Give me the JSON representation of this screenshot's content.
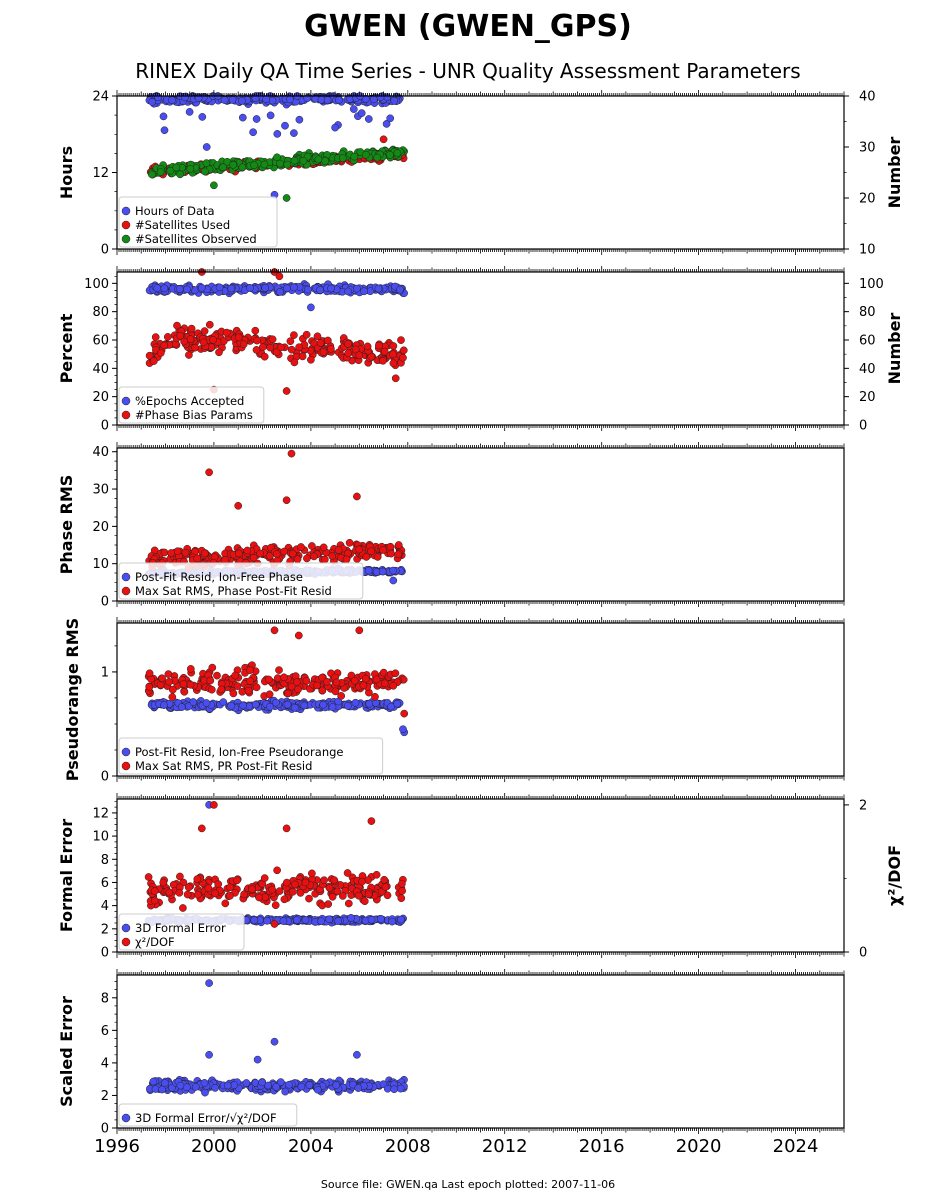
{
  "title": "GWEN (GWEN_GPS)",
  "subtitle": "RINEX Daily QA Time Series - UNR Quality Assessment Parameters",
  "footer": "Source file: GWEN.qa Last epoch plotted: 2007-11-06",
  "colors": {
    "blue": "#4a4ef0",
    "red": "#e81010",
    "green": "#138a13"
  },
  "chart_data": [
    {
      "type": "scatter",
      "ylabel": "Hours",
      "ylabel_right": "Number",
      "xlim": [
        1996,
        2026
      ],
      "xticks": [
        "1996",
        "2000",
        "2004",
        "2008",
        "2012",
        "2016",
        "2020",
        "2024"
      ],
      "ylim": [
        0,
        24
      ],
      "yticks": [
        "0",
        "12",
        "24"
      ],
      "ylim_right": [
        10,
        40
      ],
      "yticks_right": [
        "10",
        "20",
        "30",
        "40"
      ],
      "legend": [
        "Hours of Data",
        "#Satellites Used",
        "#Satellites Observed"
      ],
      "series": [
        {
          "name": "Hours of Data",
          "axis": "left",
          "color": "blue",
          "x_range": [
            1997.3,
            2007.85
          ],
          "base": 23.5,
          "spread": 0.6,
          "outlier_range": [
            17,
            23.5
          ],
          "outliers": [
            [
              2002.5,
              8.5
            ],
            [
              1999.7,
              16.0
            ],
            [
              2003.0,
              13.5
            ]
          ]
        },
        {
          "name": "#Satellites Used",
          "axis": "right",
          "color": "red",
          "x_range": [
            1997.3,
            2007.85
          ],
          "trend": [
            [
              1997.3,
              25.2
            ],
            [
              2002.0,
              26.5
            ],
            [
              2007.85,
              28.5
            ]
          ],
          "spread": 0.8,
          "outliers": [
            [
              2007.0,
              31.5
            ]
          ]
        },
        {
          "name": "#Satellites Observed",
          "axis": "right",
          "color": "green",
          "x_range": [
            1997.3,
            2007.85
          ],
          "trend": [
            [
              1997.3,
              25.2
            ],
            [
              2002.0,
              26.8
            ],
            [
              2007.85,
              29.0
            ]
          ],
          "spread": 1.0,
          "outliers": [
            [
              2003.0,
              20.0
            ],
            [
              2000.0,
              22.5
            ]
          ]
        }
      ]
    },
    {
      "type": "scatter",
      "ylabel": "Percent",
      "ylabel_right": "Number",
      "xlim": [
        1996,
        2026
      ],
      "ylim": [
        0,
        108
      ],
      "yticks": [
        "0",
        "20",
        "40",
        "60",
        "80",
        "100"
      ],
      "ylim_right": [
        0,
        108
      ],
      "yticks_right": [
        "0",
        "20",
        "40",
        "60",
        "80",
        "100"
      ],
      "legend": [
        "%Epochs Accepted",
        "#Phase Bias Params"
      ],
      "series": [
        {
          "name": "%Epochs Accepted",
          "axis": "left",
          "color": "blue",
          "x_range": [
            1997.3,
            2007.85
          ],
          "base": 96,
          "spread": 2.5,
          "outliers": [
            [
              2004.0,
              83
            ]
          ]
        },
        {
          "name": "#Phase Bias Params",
          "axis": "right",
          "color": "red",
          "x_range": [
            1997.3,
            2007.85
          ],
          "trend": [
            [
              1997.3,
              50
            ],
            [
              1998.5,
              62
            ],
            [
              2000.0,
              60
            ],
            [
              2003.0,
              55
            ],
            [
              2007.85,
              50
            ]
          ],
          "spread": 9,
          "outliers": [
            [
              1999.5,
              108
            ],
            [
              2002.5,
              108
            ],
            [
              2002.7,
              105
            ],
            [
              2000.0,
              25
            ],
            [
              2003.0,
              24
            ],
            [
              2007.5,
              33
            ]
          ]
        }
      ]
    },
    {
      "type": "scatter",
      "ylabel": "Phase RMS",
      "xlim": [
        1996,
        2026
      ],
      "ylim": [
        0,
        41
      ],
      "yticks": [
        "0",
        "10",
        "20",
        "30",
        "40"
      ],
      "legend": [
        "Post-Fit Resid, Ion-Free Phase",
        "Max Sat RMS, Phase Post-Fit Resid"
      ],
      "series": [
        {
          "name": "Post-Fit Resid, Ion-Free Phase",
          "axis": "left",
          "color": "blue",
          "x_range": [
            1997.3,
            2007.85
          ],
          "trend": [
            [
              1997.3,
              7.5
            ],
            [
              2007.85,
              8.0
            ]
          ],
          "spread": 0.6,
          "outliers": [
            [
              2007.4,
              5.5
            ]
          ]
        },
        {
          "name": "Max Sat RMS, Phase Post-Fit Resid",
          "axis": "left",
          "color": "red",
          "x_range": [
            1997.3,
            2007.85
          ],
          "trend": [
            [
              1997.3,
              10.5
            ],
            [
              2002.0,
              12.5
            ],
            [
              2007.85,
              13.5
            ]
          ],
          "spread": 2.5,
          "outliers": [
            [
              1999.8,
              34.5
            ],
            [
              2003.2,
              39.5
            ],
            [
              2005.9,
              28.0
            ],
            [
              2001.0,
              25.5
            ],
            [
              2003.0,
              27.0
            ]
          ]
        }
      ]
    },
    {
      "type": "scatter",
      "ylabel": "Pseudorange RMS",
      "xlim": [
        1996,
        2026
      ],
      "ylim": [
        0,
        1.47
      ],
      "yticks": [
        "0",
        "1"
      ],
      "legend": [
        "Post-Fit Resid, Ion-Free Pseudorange",
        "Max Sat RMS, PR Post-Fit Resid"
      ],
      "series": [
        {
          "name": "Post-Fit Resid, Ion-Free Pseudorange",
          "axis": "left",
          "color": "blue",
          "x_range": [
            1997.3,
            2007.85
          ],
          "base": 0.68,
          "spread": 0.04,
          "outliers": [
            [
              2007.85,
              0.42
            ],
            [
              2007.8,
              0.45
            ]
          ]
        },
        {
          "name": "Max Sat RMS, PR Post-Fit Resid",
          "axis": "left",
          "color": "red",
          "x_range": [
            1997.3,
            2007.85
          ],
          "base": 0.9,
          "spread": 0.12,
          "outliers": [
            [
              2002.5,
              1.4
            ],
            [
              2003.5,
              1.35
            ],
            [
              2006.0,
              1.4
            ],
            [
              2007.85,
              0.6
            ]
          ]
        }
      ]
    },
    {
      "type": "scatter",
      "ylabel": "Formal Error",
      "ylabel_right": "χ²/DOF",
      "xlim": [
        1996,
        2026
      ],
      "ylim": [
        0,
        13.2
      ],
      "yticks": [
        "0",
        "2",
        "4",
        "6",
        "8",
        "10",
        "12"
      ],
      "ylim_right": [
        0,
        2.08
      ],
      "yticks_right": [
        "0",
        "2"
      ],
      "legend": [
        "3D Formal Error",
        "χ²/DOF"
      ],
      "series": [
        {
          "name": "3D Formal Error",
          "axis": "left",
          "color": "blue",
          "x_range": [
            1997.3,
            2007.85
          ],
          "base": 2.75,
          "spread": 0.18,
          "outliers": [
            [
              1999.8,
              12.7
            ]
          ]
        },
        {
          "name": "χ²/DOF",
          "axis": "right",
          "color": "red",
          "x_range": [
            1997.3,
            2007.85
          ],
          "base": 0.85,
          "spread": 0.2,
          "outliers": [
            [
              2000.0,
              2.0
            ],
            [
              2006.5,
              1.78
            ],
            [
              2003.0,
              1.68
            ],
            [
              1999.5,
              1.68
            ],
            [
              2002.5,
              0.38
            ]
          ]
        }
      ]
    },
    {
      "type": "scatter",
      "ylabel": "Scaled Error",
      "xlim": [
        1996,
        2026
      ],
      "ylim": [
        0,
        9.4
      ],
      "yticks": [
        "0",
        "2",
        "4",
        "6",
        "8"
      ],
      "legend": [
        "3D Formal Error/√χ²/DOF"
      ],
      "series": [
        {
          "name": "3D Formal Error/√χ²/DOF",
          "axis": "left",
          "color": "blue",
          "x_range": [
            1997.3,
            2007.85
          ],
          "base": 2.6,
          "spread": 0.35,
          "outliers": [
            [
              1999.8,
              8.9
            ],
            [
              2002.5,
              5.3
            ],
            [
              2005.9,
              4.5
            ],
            [
              2001.8,
              4.2
            ],
            [
              1999.8,
              4.5
            ]
          ]
        }
      ]
    }
  ]
}
